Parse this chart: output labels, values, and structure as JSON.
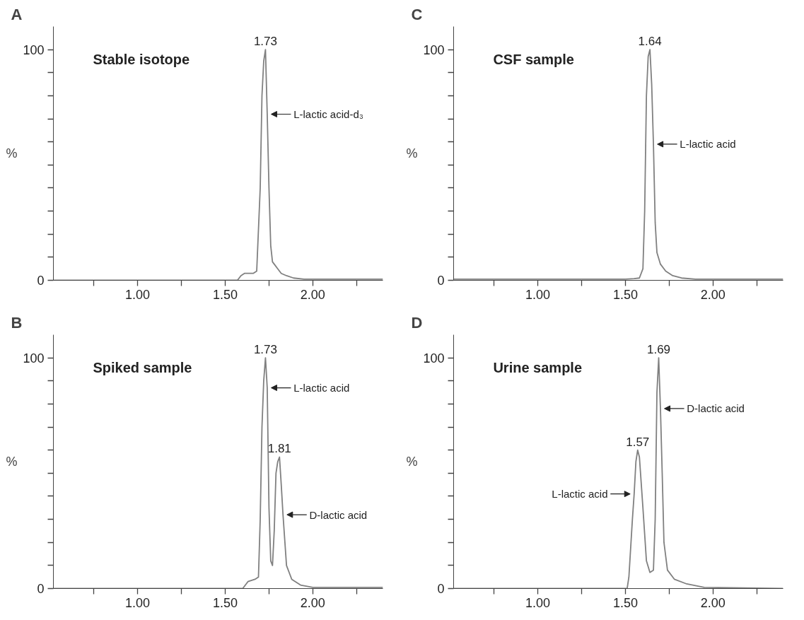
{
  "chart_data": [
    {
      "type": "line",
      "title": "A",
      "subtitle": "Stable isotope",
      "ylabel": "%",
      "grid": false,
      "xlim": [
        0.52,
        2.4
      ],
      "ylim": [
        0,
        110
      ],
      "xticks": [
        {
          "value": 0.75,
          "label": null
        },
        {
          "value": 1.0,
          "label": "1.00"
        },
        {
          "value": 1.25,
          "label": null
        },
        {
          "value": 1.5,
          "label": "1.50"
        },
        {
          "value": 1.75,
          "label": null
        },
        {
          "value": 2.0,
          "label": "2.00"
        },
        {
          "value": 2.25,
          "label": null
        }
      ],
      "yticks": [
        0,
        {
          "value": 10,
          "label": null
        },
        {
          "value": 20,
          "label": null
        },
        {
          "value": 30,
          "label": null
        },
        {
          "value": 40,
          "label": null
        },
        {
          "value": 50,
          "label": null
        },
        {
          "value": 60,
          "label": null
        },
        {
          "value": 70,
          "label": null
        },
        {
          "value": 80,
          "label": null
        },
        {
          "value": 90,
          "label": null
        },
        100
      ],
      "annotations": [
        {
          "text": "1.73",
          "x": 1.73,
          "y": 100
        },
        {
          "text": "L-lactic acid-d₃",
          "x": 1.74,
          "y": 72
        }
      ],
      "series": [
        {
          "color": "#808080",
          "x": [
            0.52,
            1.0,
            1.57,
            1.59,
            1.61,
            1.66,
            1.68,
            1.7,
            1.71,
            1.72,
            1.73,
            1.74,
            1.75,
            1.76,
            1.77,
            1.78,
            1.8,
            1.82,
            1.85,
            1.89,
            1.95,
            2.1,
            2.4
          ],
          "values": [
            0,
            0,
            0,
            2,
            3,
            3,
            4,
            40,
            80,
            95,
            100,
            72,
            40,
            15,
            8,
            7,
            5,
            3,
            2,
            1,
            0.5,
            0.5,
            0.5
          ]
        }
      ]
    },
    {
      "type": "line",
      "title": "C",
      "subtitle": "CSF sample",
      "ylabel": "%",
      "grid": false,
      "xlim": [
        0.52,
        2.4
      ],
      "ylim": [
        0,
        110
      ],
      "xticks": [
        {
          "value": 0.75,
          "label": null
        },
        {
          "value": 1.0,
          "label": "1.00"
        },
        {
          "value": 1.25,
          "label": null
        },
        {
          "value": 1.5,
          "label": "1.50"
        },
        {
          "value": 1.75,
          "label": null
        },
        {
          "value": 2.0,
          "label": "2.00"
        },
        {
          "value": 2.25,
          "label": null
        }
      ],
      "yticks": [
        0,
        {
          "value": 10,
          "label": null
        },
        {
          "value": 20,
          "label": null
        },
        {
          "value": 30,
          "label": null
        },
        {
          "value": 40,
          "label": null
        },
        {
          "value": 50,
          "label": null
        },
        {
          "value": 60,
          "label": null
        },
        {
          "value": 70,
          "label": null
        },
        {
          "value": 80,
          "label": null
        },
        {
          "value": 90,
          "label": null
        },
        100
      ],
      "annotations": [
        {
          "text": "1.64",
          "x": 1.64,
          "y": 100
        },
        {
          "text": "L-lactic acid",
          "x": 1.66,
          "y": 59
        }
      ],
      "series": [
        {
          "color": "#808080",
          "x": [
            0.52,
            1.0,
            1.5,
            1.55,
            1.58,
            1.6,
            1.61,
            1.62,
            1.63,
            1.64,
            1.65,
            1.66,
            1.67,
            1.68,
            1.7,
            1.73,
            1.77,
            1.82,
            1.9,
            2.1,
            2.4
          ],
          "values": [
            0.5,
            0.5,
            0.5,
            0.7,
            1,
            5,
            30,
            80,
            97,
            100,
            85,
            59,
            25,
            12,
            7,
            4,
            2,
            1,
            0.5,
            0.5,
            0.5
          ]
        }
      ]
    },
    {
      "type": "line",
      "title": "B",
      "subtitle": "Spiked sample",
      "ylabel": "%",
      "grid": false,
      "xlim": [
        0.52,
        2.4
      ],
      "ylim": [
        0,
        110
      ],
      "xticks": [
        {
          "value": 0.75,
          "label": null
        },
        {
          "value": 1.0,
          "label": "1.00"
        },
        {
          "value": 1.25,
          "label": null
        },
        {
          "value": 1.5,
          "label": "1.50"
        },
        {
          "value": 1.75,
          "label": null
        },
        {
          "value": 2.0,
          "label": "2.00"
        },
        {
          "value": 2.25,
          "label": null
        }
      ],
      "yticks": [
        0,
        {
          "value": 10,
          "label": null
        },
        {
          "value": 20,
          "label": null
        },
        {
          "value": 30,
          "label": null
        },
        {
          "value": 40,
          "label": null
        },
        {
          "value": 50,
          "label": null
        },
        {
          "value": 60,
          "label": null
        },
        {
          "value": 70,
          "label": null
        },
        {
          "value": 80,
          "label": null
        },
        {
          "value": 90,
          "label": null
        },
        100
      ],
      "annotations": [
        {
          "text": "1.73",
          "x": 1.73,
          "y": 100
        },
        {
          "text": "1.81",
          "x": 1.81,
          "y": 57
        },
        {
          "text": "L-lactic acid",
          "x": 1.74,
          "y": 87
        },
        {
          "text": "D-lactic acid",
          "x": 1.83,
          "y": 32
        }
      ],
      "series": [
        {
          "color": "#808080",
          "x": [
            0.52,
            1.0,
            1.6,
            1.63,
            1.67,
            1.69,
            1.7,
            1.71,
            1.72,
            1.73,
            1.74,
            1.75,
            1.76,
            1.77,
            1.78,
            1.79,
            1.8,
            1.81,
            1.82,
            1.83,
            1.85,
            1.88,
            1.93,
            2.0,
            2.4
          ],
          "values": [
            0,
            0,
            0,
            3,
            4,
            5,
            30,
            70,
            90,
            100,
            87,
            35,
            12,
            10,
            25,
            50,
            55,
            57,
            45,
            32,
            10,
            4,
            1.5,
            0.5,
            0.5
          ]
        }
      ]
    },
    {
      "type": "line",
      "title": "D",
      "subtitle": "Urine sample",
      "ylabel": "%",
      "grid": false,
      "xlim": [
        0.52,
        2.4
      ],
      "ylim": [
        0,
        110
      ],
      "xticks": [
        {
          "value": 0.75,
          "label": null
        },
        {
          "value": 1.0,
          "label": "1.00"
        },
        {
          "value": 1.25,
          "label": null
        },
        {
          "value": 1.5,
          "label": "1.50"
        },
        {
          "value": 1.75,
          "label": null
        },
        {
          "value": 2.0,
          "label": "2.00"
        },
        {
          "value": 2.25,
          "label": null
        }
      ],
      "yticks": [
        0,
        {
          "value": 10,
          "label": null
        },
        {
          "value": 20,
          "label": null
        },
        {
          "value": 30,
          "label": null
        },
        {
          "value": 40,
          "label": null
        },
        {
          "value": 50,
          "label": null
        },
        {
          "value": 60,
          "label": null
        },
        {
          "value": 70,
          "label": null
        },
        {
          "value": 80,
          "label": null
        },
        {
          "value": 90,
          "label": null
        },
        100
      ],
      "annotations": [
        {
          "text": "1.57",
          "x": 1.57,
          "y": 60
        },
        {
          "text": "1.69",
          "x": 1.69,
          "y": 100
        },
        {
          "text": "L-lactic acid",
          "x": 1.55,
          "y": 41
        },
        {
          "text": "D-lactic acid",
          "x": 1.7,
          "y": 78
        }
      ],
      "series": [
        {
          "color": "#808080",
          "x": [
            0.52,
            1.0,
            1.51,
            1.52,
            1.54,
            1.55,
            1.56,
            1.57,
            1.58,
            1.6,
            1.62,
            1.64,
            1.66,
            1.67,
            1.68,
            1.69,
            1.7,
            1.71,
            1.72,
            1.74,
            1.78,
            1.85,
            1.95,
            2.4
          ],
          "values": [
            0,
            0,
            0,
            5,
            30,
            41,
            55,
            60,
            57,
            35,
            12,
            7,
            8,
            30,
            85,
            100,
            78,
            50,
            20,
            8,
            4,
            2,
            0.5,
            0
          ]
        }
      ]
    }
  ]
}
